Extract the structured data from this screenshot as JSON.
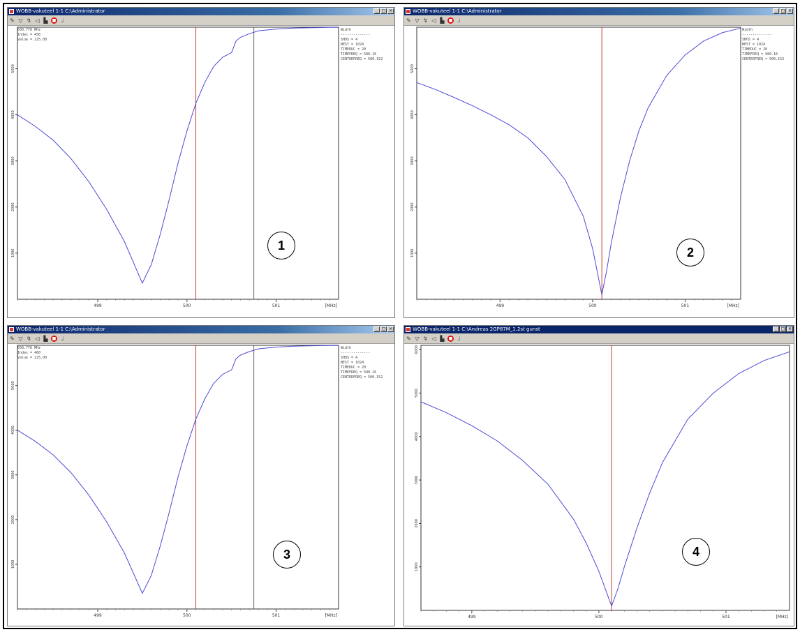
{
  "colors": {
    "curve": "#4a4ad6",
    "marker_red": "#cc3a2a",
    "marker_gray": "#666666",
    "axis": "#333333"
  },
  "panels": [
    {
      "title": "WOBB-vakuteel 1-1 C:\\Administrator",
      "badge": "1",
      "marker_text": [
        "500.776 MHz",
        "Index = 456",
        "Value = 225.00"
      ],
      "params": [
        "Width",
        "--------------",
        "SHOS = 4",
        "NEST = 1024",
        "TIMEDUC = 20",
        "TIMEFREQ = 500.16",
        "CENTERFREQ = 500.152"
      ],
      "chart_data": {
        "type": "line",
        "xlabel": "[MHz]",
        "x_ticks": [
          "499",
          "500",
          "501"
        ],
        "y_ticks": [
          "1000",
          "2000",
          "3000",
          "4000",
          "5000"
        ],
        "xlim": [
          498.1,
          501.7
        ],
        "ylim": [
          0,
          5900
        ],
        "x": [
          498.1,
          498.3,
          498.5,
          498.7,
          498.9,
          499.1,
          499.3,
          499.5,
          499.6,
          499.7,
          499.8,
          499.9,
          500.0,
          500.1,
          500.2,
          500.3,
          500.4,
          500.5,
          500.55,
          500.6,
          500.7,
          500.8,
          501.0,
          501.2,
          501.4,
          501.6,
          501.7
        ],
        "y": [
          4000,
          3750,
          3450,
          3050,
          2550,
          1950,
          1250,
          350,
          750,
          1400,
          2150,
          2950,
          3650,
          4250,
          4700,
          5050,
          5250,
          5350,
          5600,
          5680,
          5760,
          5820,
          5860,
          5880,
          5890,
          5895,
          5895
        ],
        "red_marker_x": 500.1,
        "gray_marker_x": 500.75
      }
    },
    {
      "title": "WOBB-vakuteel 1-1 C:\\Administrator",
      "badge": "2",
      "marker_text": [],
      "params": [
        "Width",
        "--------------",
        "SHOS = 4",
        "NEST = 1024",
        "TIMEDUC = 20",
        "TIMEFREQ = 500.16",
        "CENTERFREQ = 500.152"
      ],
      "chart_data": {
        "type": "line",
        "xlabel": "[MHz]",
        "x_ticks": [
          "499",
          "500",
          "501"
        ],
        "y_ticks": [
          "1000",
          "2000",
          "3000",
          "4000",
          "5000"
        ],
        "xlim": [
          498.1,
          501.6
        ],
        "ylim": [
          0,
          5900
        ],
        "x": [
          498.1,
          498.3,
          498.5,
          498.7,
          498.9,
          499.1,
          499.3,
          499.5,
          499.7,
          499.9,
          500.0,
          500.05,
          500.1,
          500.15,
          500.2,
          500.3,
          500.4,
          500.5,
          500.6,
          500.8,
          501.0,
          501.2,
          501.4,
          501.6
        ],
        "y": [
          4700,
          4550,
          4380,
          4200,
          4000,
          3780,
          3500,
          3100,
          2600,
          1800,
          1100,
          600,
          100,
          600,
          1200,
          2200,
          3000,
          3650,
          4150,
          4850,
          5300,
          5600,
          5780,
          5880
        ],
        "red_marker_x": 500.1,
        "gray_marker_x": null
      }
    },
    {
      "title": "WOBB-vakuteel 1-1 C:\\Administrator",
      "badge": "3",
      "marker_text": [
        "500.776 MHz",
        "Index = 460",
        "Value = 225.00"
      ],
      "params": [
        "Width",
        "--------------",
        "SHOS = 4",
        "NEST = 1024",
        "TIMEDUC = 20",
        "TIMEFREQ = 500.16",
        "CENTERFREQ = 500.152"
      ],
      "chart_data": {
        "type": "line",
        "xlabel": "[MHz]",
        "x_ticks": [
          "499",
          "500",
          "501"
        ],
        "y_ticks": [
          "1000",
          "2000",
          "3000",
          "4000",
          "5000"
        ],
        "xlim": [
          498.1,
          501.7
        ],
        "ylim": [
          0,
          5900
        ],
        "x": [
          498.1,
          498.3,
          498.5,
          498.7,
          498.9,
          499.1,
          499.3,
          499.5,
          499.6,
          499.7,
          499.8,
          499.9,
          500.0,
          500.1,
          500.2,
          500.3,
          500.4,
          500.5,
          500.55,
          500.6,
          500.7,
          500.8,
          501.0,
          501.2,
          501.4,
          501.6,
          501.7
        ],
        "y": [
          4000,
          3750,
          3450,
          3050,
          2550,
          1950,
          1250,
          350,
          750,
          1400,
          2150,
          2950,
          3650,
          4250,
          4700,
          5050,
          5250,
          5350,
          5600,
          5680,
          5760,
          5820,
          5860,
          5880,
          5890,
          5895,
          5895
        ],
        "red_marker_x": 500.1,
        "gray_marker_x": 500.75
      }
    },
    {
      "title": "WOBB-vakuteel 1-1 C:\\Andreas 2GP87M_1.2st gunst",
      "badge": "4",
      "marker_text": [],
      "params": [],
      "chart_data": {
        "type": "line",
        "xlabel": "[MHz]",
        "x_ticks": [
          "499",
          "500",
          "501"
        ],
        "y_ticks": [
          "1000",
          "2000",
          "3000",
          "4000",
          "5000",
          "6000"
        ],
        "xlim": [
          498.6,
          501.5
        ],
        "ylim": [
          0,
          6100
        ],
        "x": [
          498.6,
          498.8,
          499.0,
          499.2,
          499.4,
          499.6,
          499.8,
          499.9,
          500.0,
          500.05,
          500.1,
          500.15,
          500.2,
          500.3,
          500.4,
          500.5,
          500.7,
          500.9,
          501.1,
          501.3,
          501.5
        ],
        "y": [
          4800,
          4550,
          4250,
          3900,
          3450,
          2900,
          2100,
          1550,
          900,
          500,
          100,
          500,
          1000,
          1900,
          2700,
          3400,
          4400,
          5000,
          5450,
          5750,
          5950
        ],
        "red_marker_x": 500.1,
        "gray_marker_x": null
      }
    }
  ]
}
